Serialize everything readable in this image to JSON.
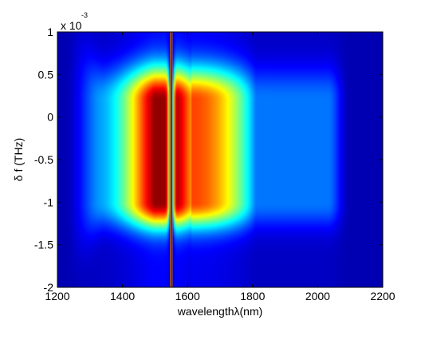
{
  "chart_data": {
    "type": "heatmap",
    "title": "",
    "xlabel": "wavelengthλ(nm)",
    "ylabel": "δ f (THz)",
    "xlim": [
      1200,
      2200
    ],
    "ylim": [
      -2,
      1
    ],
    "y_scale_multiplier": "x 10",
    "y_scale_exponent": "-3",
    "x_ticks": [
      "1200",
      "1400",
      "1600",
      "1800",
      "2000",
      "2200"
    ],
    "y_ticks": [
      "1",
      "0.5",
      "0",
      "-0.5",
      "-1",
      "-1.5",
      "-2"
    ],
    "x_tick_values": [
      1200,
      1400,
      1600,
      1800,
      2000,
      2200
    ],
    "y_tick_values": [
      1,
      0.5,
      0,
      -0.5,
      -1,
      -1.5,
      -2
    ],
    "colormap": "jet",
    "low_color": "#0000a0",
    "high_color": "#ff2000",
    "plateau_y_range": [
      -1.0,
      0.2
    ],
    "notch_center_wavelength": 1550,
    "peak_wavelength_range": [
      1430,
      1600
    ],
    "grid": false,
    "legend": "none"
  }
}
